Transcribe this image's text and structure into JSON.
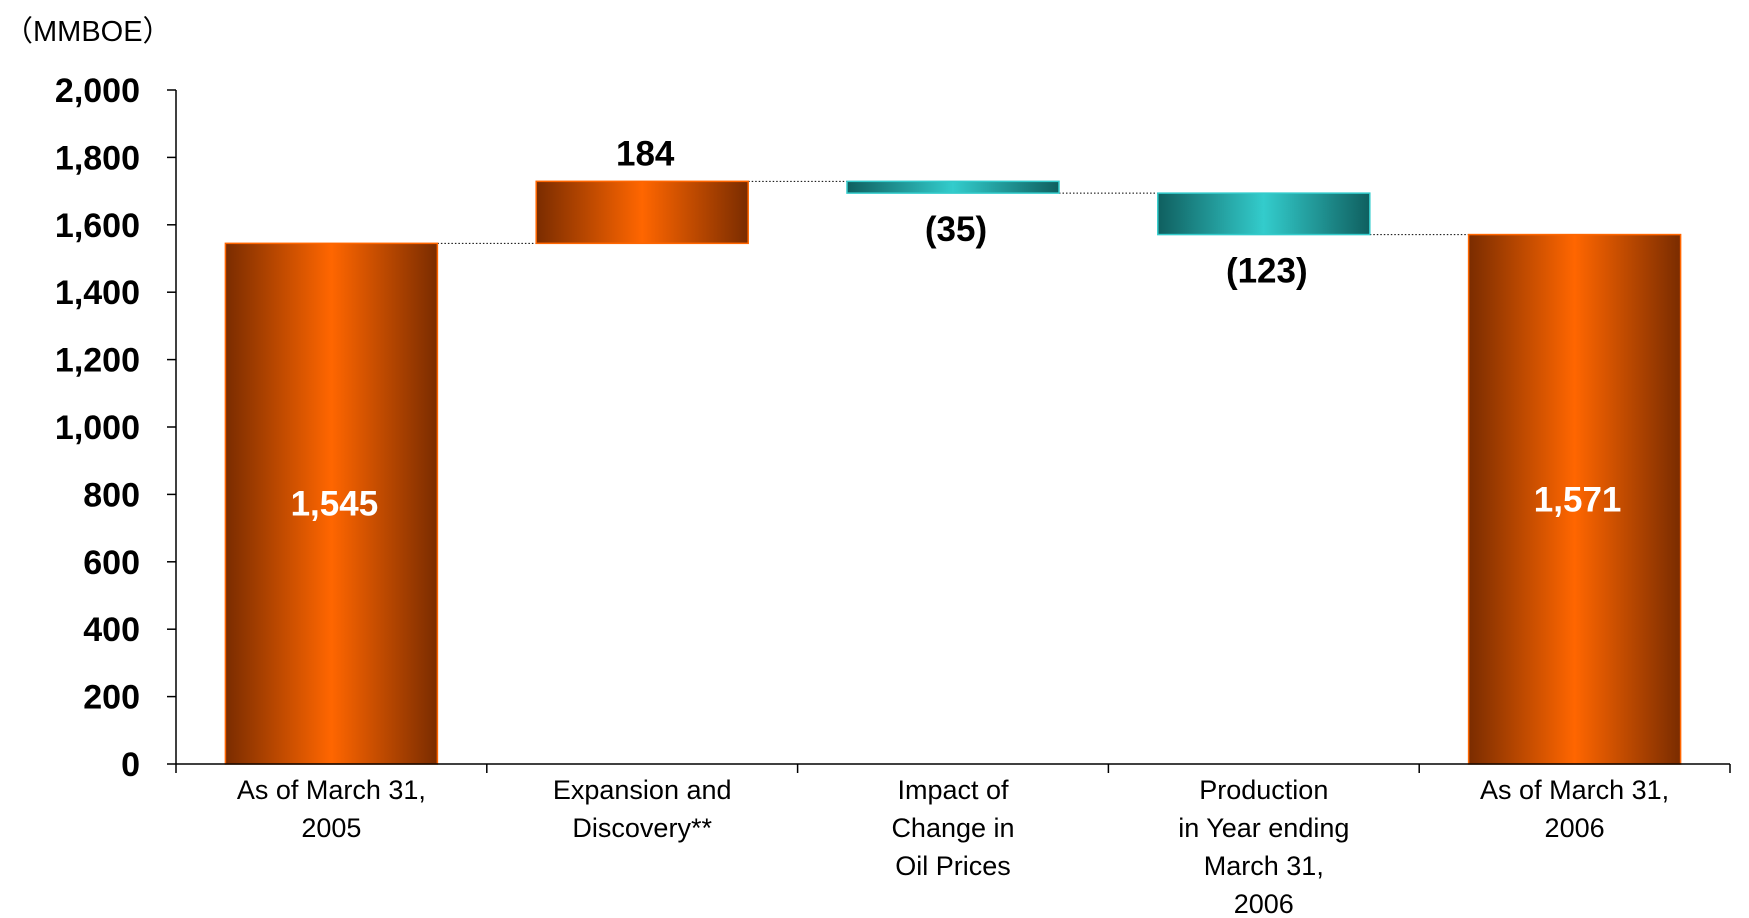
{
  "unit_label": "（MMBOE）",
  "colors": {
    "increase": "#ff6600",
    "increase_edge": "#7a2c00",
    "decrease": "#33cccc",
    "decrease_edge": "#0f5f5f",
    "inside_label": "#ffffff",
    "outside_label": "#000000",
    "connector": "#000000",
    "axis": "#000000"
  },
  "chart_data": {
    "type": "waterfall",
    "title": "",
    "xlabel": "",
    "ylabel": "（MMBOE）",
    "ylim": [
      0,
      2000
    ],
    "yticks": [
      0,
      200,
      400,
      600,
      800,
      1000,
      1200,
      1400,
      1600,
      1800,
      2000
    ],
    "ytick_labels": [
      "0",
      "200",
      "400",
      "600",
      "800",
      "1,000",
      "1,200",
      "1,400",
      "1,600",
      "1,800",
      "2,000"
    ],
    "grid": false,
    "bars": [
      {
        "category": [
          "As of March 31,",
          "2005"
        ],
        "kind": "total",
        "start": 0,
        "end": 1545,
        "label": "1,545",
        "label_position": "inside"
      },
      {
        "category": [
          "Expansion and",
          "Discovery**"
        ],
        "kind": "increase",
        "start": 1545,
        "end": 1729,
        "value": 184,
        "label": "184",
        "label_position": "above"
      },
      {
        "category": [
          "Impact of",
          "Change in",
          "Oil Prices"
        ],
        "kind": "decrease",
        "start": 1729,
        "end": 1694,
        "value": -35,
        "label": "(35)",
        "label_position": "below"
      },
      {
        "category": [
          "Production",
          "in Year ending",
          "March 31,",
          "2006"
        ],
        "kind": "decrease",
        "start": 1694,
        "end": 1571,
        "value": -123,
        "label": "(123)",
        "label_position": "below"
      },
      {
        "category": [
          "As of March 31,",
          "2006"
        ],
        "kind": "total",
        "start": 0,
        "end": 1571,
        "label": "1,571",
        "label_position": "inside"
      }
    ]
  }
}
